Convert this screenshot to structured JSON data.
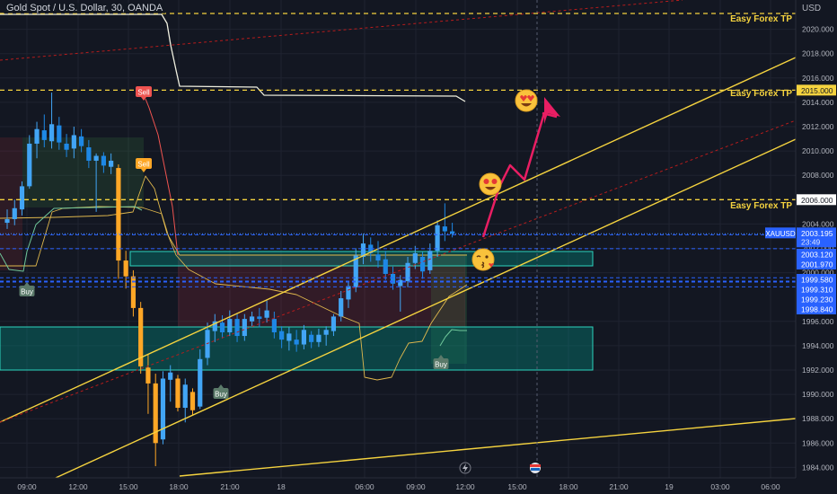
{
  "chart": {
    "symbol_header": "Gold Spot / U.S. Dollar, 30, OANDA",
    "currency": "USD",
    "symbol_tag": "XAUUSD",
    "live_price": "2003.195",
    "countdown": "23:49"
  },
  "tp_labels": [
    {
      "text": "Easy Forex TP",
      "price": 2021.3
    },
    {
      "text": "Easy Forex TP",
      "price": 2015.0
    },
    {
      "text": "Easy Forex TP",
      "price": 2006.0
    }
  ],
  "signals": [
    {
      "text": "Sell",
      "kind": "sell",
      "time": "13:30",
      "price": 2014.7
    },
    {
      "text": "Sell",
      "kind": "sell",
      "time": "13:30",
      "price": 2009.0
    },
    {
      "text": "Buy",
      "kind": "buy",
      "time": "09:00",
      "price": 1998.6
    },
    {
      "text": "Buy",
      "kind": "buy",
      "time": "20:30",
      "price": 1990.8
    },
    {
      "text": "Buy",
      "kind": "buy",
      "time": "08:30",
      "price": 1993.2
    }
  ],
  "price_tags": [
    {
      "text": "2015.000",
      "price": 2015.0,
      "bg": "#f5d33f",
      "fg": "#131722"
    },
    {
      "text": "2006.000",
      "price": 2006.0,
      "bg": "#ffffff",
      "fg": "#131722"
    },
    {
      "text": "2003.120",
      "price": 2003.12,
      "bg": "#2962ff",
      "fg": "#ffffff"
    },
    {
      "text": "2001.970",
      "price": 2001.97,
      "bg": "#2962ff",
      "fg": "#ffffff"
    },
    {
      "text": "1999.580",
      "price": 1999.58,
      "bg": "#2962ff",
      "fg": "#ffffff"
    },
    {
      "text": "1999.310",
      "price": 1999.31,
      "bg": "#2962ff",
      "fg": "#ffffff"
    },
    {
      "text": "1999.230",
      "price": 1999.23,
      "bg": "#2962ff",
      "fg": "#ffffff"
    },
    {
      "text": "1998.840",
      "price": 1998.84,
      "bg": "#2962ff",
      "fg": "#ffffff"
    }
  ],
  "chart_data": {
    "type": "candlestick",
    "y_axis": {
      "ticks": [
        "2020.000",
        "2018.000",
        "2016.000",
        "2014.000",
        "2012.000",
        "2010.000",
        "2008.000",
        "2004.000",
        "2002.000",
        "2000.000",
        "1996.000",
        "1994.000",
        "1992.000",
        "1990.000",
        "1988.000",
        "1986.000",
        "1984.000"
      ],
      "range": [
        1983.5,
        2022.5
      ]
    },
    "x_axis": {
      "ticks": [
        "09:00",
        "12:00",
        "15:00",
        "18:00",
        "21:00",
        "18",
        "06:00",
        "09:00",
        "12:00",
        "15:00",
        "18:00",
        "21:00",
        "19",
        "03:00",
        "06:00"
      ]
    },
    "candles": [
      {
        "t": "08:00",
        "o": 2004.1,
        "h": 2005.2,
        "l": 2003.6,
        "c": 2004.4
      },
      {
        "t": "08:30",
        "o": 2004.4,
        "h": 2006.0,
        "l": 2003.9,
        "c": 2005.3
      },
      {
        "t": "09:00",
        "o": 2005.2,
        "h": 2007.5,
        "l": 2004.7,
        "c": 2007.1
      },
      {
        "t": "09:30",
        "o": 2007.1,
        "h": 2011.3,
        "l": 2006.9,
        "c": 2010.6
      },
      {
        "t": "10:00",
        "o": 2010.6,
        "h": 2012.4,
        "l": 2009.4,
        "c": 2011.8
      },
      {
        "t": "10:30",
        "o": 2011.7,
        "h": 2013.0,
        "l": 2010.3,
        "c": 2010.9
      },
      {
        "t": "11:00",
        "o": 2010.8,
        "h": 2014.8,
        "l": 2010.2,
        "c": 2012.2
      },
      {
        "t": "11:30",
        "o": 2012.1,
        "h": 2012.8,
        "l": 2010.1,
        "c": 2010.7
      },
      {
        "t": "12:00",
        "o": 2010.6,
        "h": 2011.4,
        "l": 2009.5,
        "c": 2010.1
      },
      {
        "t": "12:30",
        "o": 2010.2,
        "h": 2012.0,
        "l": 2009.4,
        "c": 2011.3
      },
      {
        "t": "13:00",
        "o": 2011.2,
        "h": 2011.8,
        "l": 2009.9,
        "c": 2010.4
      },
      {
        "t": "13:30",
        "o": 2010.3,
        "h": 2010.9,
        "l": 2008.6,
        "c": 2009.2
      },
      {
        "t": "14:00",
        "o": 2009.2,
        "h": 2009.8,
        "l": 2005.0,
        "c": 2009.6
      },
      {
        "t": "14:30",
        "o": 2009.6,
        "h": 2009.9,
        "l": 2008.2,
        "c": 2008.8
      },
      {
        "t": "15:00",
        "o": 2008.7,
        "h": 2009.8,
        "l": 2008.1,
        "c": 2009.2
      },
      {
        "t": "15:30",
        "o": 2008.6,
        "h": 2008.9,
        "l": 1999.5,
        "c": 2001.0
      },
      {
        "t": "16:00",
        "o": 2001.0,
        "h": 2001.8,
        "l": 1998.7,
        "c": 1999.7
      },
      {
        "t": "16:30",
        "o": 1999.7,
        "h": 2000.2,
        "l": 1996.4,
        "c": 1997.1
      },
      {
        "t": "17:00",
        "o": 1997.1,
        "h": 1997.6,
        "l": 1991.7,
        "c": 1992.3
      },
      {
        "t": "17:30",
        "o": 1992.2,
        "h": 1993.3,
        "l": 1988.4,
        "c": 1990.9
      },
      {
        "t": "18:00",
        "o": 1990.9,
        "h": 1991.7,
        "l": 1984.1,
        "c": 1986.0
      },
      {
        "t": "18:30",
        "o": 1986.3,
        "h": 1991.9,
        "l": 1985.9,
        "c": 1991.3
      },
      {
        "t": "19:00",
        "o": 1991.2,
        "h": 1992.4,
        "l": 1989.4,
        "c": 1991.8
      },
      {
        "t": "19:30",
        "o": 1991.3,
        "h": 1991.6,
        "l": 1988.6,
        "c": 1988.9
      },
      {
        "t": "20:00",
        "o": 1988.9,
        "h": 1991.3,
        "l": 1987.7,
        "c": 1990.8
      },
      {
        "t": "20:30",
        "o": 1990.2,
        "h": 1990.5,
        "l": 1988.3,
        "c": 1988.7
      },
      {
        "t": "21:00",
        "o": 1989.0,
        "h": 1993.7,
        "l": 1988.8,
        "c": 1992.9
      },
      {
        "t": "21:30",
        "o": 1993.0,
        "h": 1995.9,
        "l": 1992.4,
        "c": 1995.3
      },
      {
        "t": "22:00",
        "o": 1995.2,
        "h": 1996.6,
        "l": 1994.3,
        "c": 1996.0
      },
      {
        "t": "22:30",
        "o": 1995.9,
        "h": 1996.5,
        "l": 1994.6,
        "c": 1995.1
      },
      {
        "t": "23:00",
        "o": 1995.1,
        "h": 1996.9,
        "l": 1994.8,
        "c": 1996.2
      },
      {
        "t": "23:30",
        "o": 1996.2,
        "h": 1996.6,
        "l": 1994.3,
        "c": 1994.8
      },
      {
        "t": "00:00",
        "o": 1994.8,
        "h": 1996.6,
        "l": 1994.4,
        "c": 1996.2
      },
      {
        "t": "00:30",
        "o": 1996.0,
        "h": 1996.8,
        "l": 1995.6,
        "c": 1996.4
      },
      {
        "t": "01:00",
        "o": 1996.4,
        "h": 1997.1,
        "l": 1995.5,
        "c": 1996.2
      },
      {
        "t": "01:30",
        "o": 1996.3,
        "h": 1997.7,
        "l": 1995.9,
        "c": 1996.9
      },
      {
        "t": "02:00",
        "o": 1996.2,
        "h": 1996.8,
        "l": 1994.6,
        "c": 1995.1
      },
      {
        "t": "02:30",
        "o": 1995.2,
        "h": 1995.6,
        "l": 1993.8,
        "c": 1994.5
      },
      {
        "t": "03:00",
        "o": 1994.4,
        "h": 1995.5,
        "l": 1993.6,
        "c": 1995.0
      },
      {
        "t": "03:30",
        "o": 1994.5,
        "h": 1995.3,
        "l": 1993.5,
        "c": 1994.1
      },
      {
        "t": "04:00",
        "o": 1994.1,
        "h": 1995.7,
        "l": 1993.7,
        "c": 1995.3
      },
      {
        "t": "04:30",
        "o": 1994.9,
        "h": 1995.2,
        "l": 1993.8,
        "c": 1994.3
      },
      {
        "t": "05:00",
        "o": 1994.3,
        "h": 1995.4,
        "l": 1993.9,
        "c": 1994.9
      },
      {
        "t": "05:30",
        "o": 1994.9,
        "h": 1995.6,
        "l": 1994.0,
        "c": 1995.3
      },
      {
        "t": "06:00",
        "o": 1995.2,
        "h": 1996.6,
        "l": 1994.8,
        "c": 1996.4
      },
      {
        "t": "06:30",
        "o": 1996.4,
        "h": 1998.5,
        "l": 1996.0,
        "c": 1997.9
      },
      {
        "t": "07:00",
        "o": 1997.8,
        "h": 1999.3,
        "l": 1997.1,
        "c": 1998.9
      },
      {
        "t": "07:30",
        "o": 1998.8,
        "h": 2002.0,
        "l": 1998.4,
        "c": 2001.4
      },
      {
        "t": "08:00",
        "o": 2001.3,
        "h": 2003.2,
        "l": 2000.7,
        "c": 2002.4
      },
      {
        "t": "08:30",
        "o": 2002.3,
        "h": 2002.9,
        "l": 2000.9,
        "c": 2001.6
      },
      {
        "t": "09:00",
        "o": 2001.5,
        "h": 2002.6,
        "l": 2000.4,
        "c": 2001.0
      },
      {
        "t": "09:30",
        "o": 2001.1,
        "h": 2001.8,
        "l": 1999.4,
        "c": 1999.9
      },
      {
        "t": "10:00",
        "o": 1999.9,
        "h": 2000.5,
        "l": 1998.6,
        "c": 1999.1
      },
      {
        "t": "10:30",
        "o": 1998.9,
        "h": 1999.8,
        "l": 1996.8,
        "c": 1999.4
      },
      {
        "t": "11:00",
        "o": 1999.3,
        "h": 2001.3,
        "l": 1998.8,
        "c": 2000.8
      },
      {
        "t": "11:30",
        "o": 2000.8,
        "h": 2002.2,
        "l": 2000.3,
        "c": 2001.6
      },
      {
        "t": "12:00",
        "o": 2001.3,
        "h": 2001.7,
        "l": 1999.5,
        "c": 2000.1
      },
      {
        "t": "12:30",
        "o": 2000.2,
        "h": 2002.4,
        "l": 1999.9,
        "c": 2001.8
      },
      {
        "t": "13:00",
        "o": 2001.8,
        "h": 2004.3,
        "l": 2001.3,
        "c": 2003.9
      },
      {
        "t": "13:30",
        "o": 2003.8,
        "h": 2005.7,
        "l": 2002.6,
        "c": 2003.4
      },
      {
        "t": "14:00",
        "o": 2003.4,
        "h": 2004.1,
        "l": 2002.9,
        "c": 2003.2
      }
    ]
  },
  "footer_icons": [
    "lightning-icon",
    "calendar-flag-icon"
  ]
}
